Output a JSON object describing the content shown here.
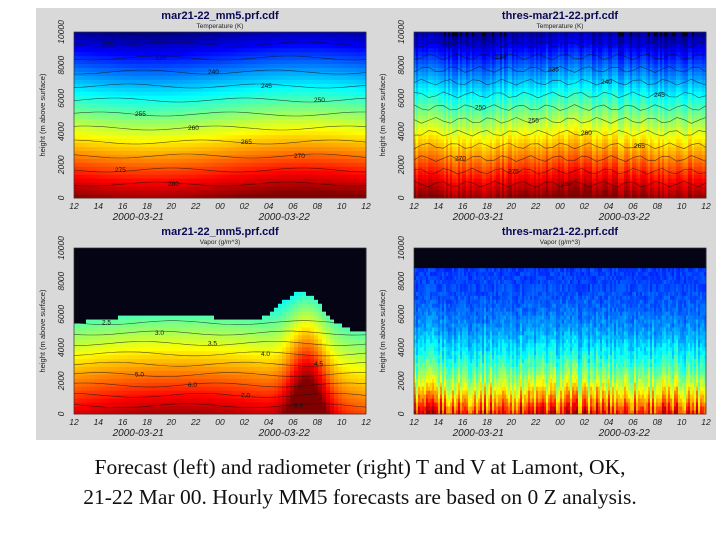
{
  "panels": [
    {
      "id": "top-left",
      "title": "mar21-22_mm5.prf.cdf",
      "subtitle": "Temperature (K)",
      "ylabel": "height (m above surface)",
      "yticks": [
        "0",
        "2000",
        "4000",
        "6000",
        "8000",
        "10000"
      ],
      "xticks": [
        "12",
        "14",
        "16",
        "18",
        "20",
        "22",
        "00",
        "02",
        "04",
        "06",
        "08",
        "10",
        "12"
      ],
      "dates": [
        "2000-03-21",
        "2000-03-22"
      ],
      "contour_labels": [
        "230",
        "235",
        "240",
        "245",
        "250",
        "255",
        "260",
        "265",
        "270",
        "275",
        "280"
      ]
    },
    {
      "id": "top-right",
      "title": "thres-mar21-22.prf.cdf",
      "subtitle": "Temperature (K)",
      "ylabel": "height (m above surface)",
      "yticks": [
        "0",
        "2000",
        "4000",
        "6000",
        "8000",
        "10000"
      ],
      "xticks": [
        "12",
        "14",
        "16",
        "18",
        "20",
        "22",
        "00",
        "02",
        "04",
        "06",
        "08",
        "10",
        "12"
      ],
      "dates": [
        "2000-03-21",
        "2000-03-22"
      ],
      "contour_labels": [
        "225",
        "230",
        "235",
        "240",
        "245",
        "250",
        "255",
        "260",
        "265",
        "270",
        "275",
        "280"
      ]
    },
    {
      "id": "bottom-left",
      "title": "mar21-22_mm5.prf.cdf",
      "subtitle": "Vapor (g/m^3)",
      "ylabel": "height (m above surface)",
      "yticks": [
        "0",
        "2000",
        "4000",
        "6000",
        "8000",
        "10000"
      ],
      "xticks": [
        "12",
        "14",
        "16",
        "18",
        "20",
        "22",
        "00",
        "02",
        "04",
        "06",
        "08",
        "10",
        "12"
      ],
      "dates": [
        "2000-03-21",
        "2000-03-22"
      ],
      "contour_labels": [
        "2.5",
        "3.0",
        "3.5",
        "4.0",
        "4.5",
        "5.0",
        "6.0",
        "7.0",
        "8.0"
      ]
    },
    {
      "id": "bottom-right",
      "title": "thres-mar21-22.prf.cdf",
      "subtitle": "Vapor (g/m^3)",
      "ylabel": "height (m above surface)",
      "yticks": [
        "0",
        "2000",
        "4000",
        "6000",
        "8000",
        "10000"
      ],
      "xticks": [
        "12",
        "14",
        "16",
        "18",
        "20",
        "22",
        "00",
        "02",
        "04",
        "06",
        "08",
        "10",
        "12"
      ],
      "dates": [
        "2000-03-21",
        "2000-03-22"
      ],
      "contour_labels": []
    }
  ],
  "caption": {
    "line1": "Forecast (left) and radiometer (right) T and V at Lamont, OK,",
    "line2": "21-22 Mar 00. Hourly MM5 forecasts are based on 0 Z analysis."
  },
  "chart_data": [
    {
      "type": "heatmap",
      "title": "mar21-22_mm5.prf.cdf",
      "subtitle": "Temperature (K)",
      "ylabel": "height (m above surface)",
      "ylim": [
        0,
        10000
      ],
      "xlim": [
        "2000-03-21 12",
        "2000-03-22 12"
      ],
      "contour_levels": [
        230,
        235,
        240,
        245,
        250,
        255,
        260,
        265,
        270,
        275,
        280
      ],
      "colormap": "jet (blue = cold aloft, red = warm near surface)"
    },
    {
      "type": "heatmap",
      "title": "thres-mar21-22.prf.cdf",
      "subtitle": "Temperature (K)",
      "ylabel": "height (m above surface)",
      "ylim": [
        0,
        10000
      ],
      "xlim": [
        "2000-03-21 12",
        "2000-03-22 12"
      ],
      "contour_levels": [
        225,
        230,
        235,
        240,
        245,
        250,
        255,
        260,
        265,
        270,
        275,
        280
      ],
      "colormap": "jet"
    },
    {
      "type": "heatmap",
      "title": "mar21-22_mm5.prf.cdf",
      "subtitle": "Vapor (g/m^3)",
      "ylabel": "height (m above surface)",
      "ylim": [
        0,
        10000
      ],
      "xlim": [
        "2000-03-21 12",
        "2000-03-22 12"
      ],
      "contour_levels": [
        2.5,
        3.0,
        3.5,
        4.0,
        4.5,
        5.0,
        6.0,
        7.0,
        8.0
      ],
      "colormap": "jet (black = ~0 aloft, red = moist near surface)"
    },
    {
      "type": "heatmap",
      "title": "thres-mar21-22.prf.cdf",
      "subtitle": "Vapor (g/m^3)",
      "ylabel": "height (m above surface)",
      "ylim": [
        0,
        10000
      ],
      "xlim": [
        "2000-03-21 12",
        "2000-03-22 12"
      ],
      "colormap": "jet"
    }
  ]
}
